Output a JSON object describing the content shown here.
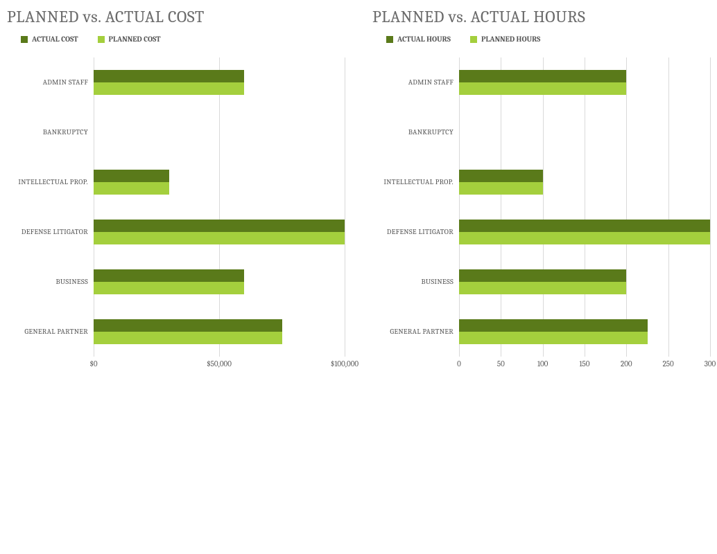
{
  "colors": {
    "actual": "#5a7a1a",
    "planned": "#a4cf3d",
    "title": "#6a6a6a",
    "grid": "#d9d9d9",
    "text": "#555555",
    "background": "#ffffff"
  },
  "categories": [
    "ADMIN STAFF",
    "BANKRUPTCY",
    "INTELLECTUAL PROP.",
    "DEFENSE LITIGATOR",
    "BUSINESS",
    "GENERAL PARTNER"
  ],
  "cost_chart": {
    "type": "bar",
    "title": "PLANNED vs. ACTUAL COST",
    "legend": {
      "actual": "ACTUAL COST",
      "planned": "PLANNED COST"
    },
    "xmin": 0,
    "xmax": 100000,
    "xtick_step": 50000,
    "xtick_format": "currency",
    "xtick_labels": [
      "$0",
      "$50,000",
      "$100,000"
    ],
    "series": {
      "actual": [
        60000,
        0,
        30000,
        100000,
        60000,
        75000
      ],
      "planned": [
        60000,
        0,
        30000,
        100000,
        60000,
        75000
      ]
    },
    "title_fontsize": 24,
    "label_fontsize": 11
  },
  "hours_chart": {
    "type": "bar",
    "title": "PLANNED vs. ACTUAL HOURS",
    "legend": {
      "actual": "ACTUAL HOURS",
      "planned": "PLANNED HOURS"
    },
    "xmin": 0,
    "xmax": 300,
    "xtick_step": 50,
    "xtick_format": "number",
    "xtick_labels": [
      "0",
      "50",
      "100",
      "150",
      "200",
      "250",
      "300"
    ],
    "series": {
      "actual": [
        200,
        0,
        100,
        300,
        200,
        225
      ],
      "planned": [
        200,
        0,
        100,
        300,
        200,
        225
      ]
    },
    "title_fontsize": 24,
    "label_fontsize": 11
  }
}
